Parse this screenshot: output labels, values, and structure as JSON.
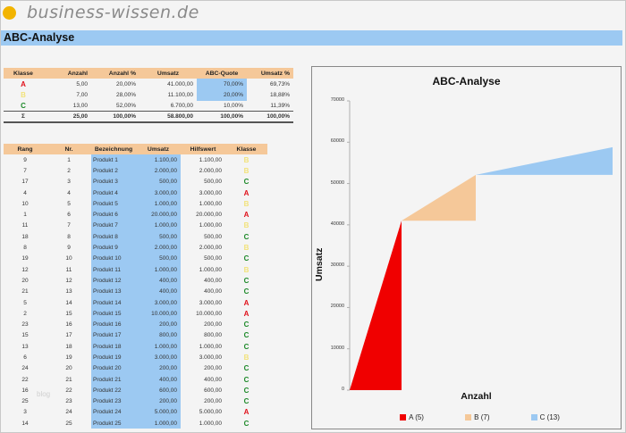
{
  "brand": {
    "logo_text": "business-wissen.de",
    "logo_color": "#f2b400"
  },
  "page_title": "ABC-Analyse",
  "summary_table": {
    "headers": [
      "Klasse",
      "Anzahl",
      "Anzahl %",
      "Umsatz",
      "ABC-Quote",
      "Umsatz %"
    ],
    "rows": [
      {
        "klasse": "A",
        "anzahl": "5,00",
        "anzahl_pct": "20,00%",
        "umsatz": "41.000,00",
        "quote": "70,00%",
        "umsatz_pct": "69,73%"
      },
      {
        "klasse": "B",
        "anzahl": "7,00",
        "anzahl_pct": "28,00%",
        "umsatz": "11.100,00",
        "quote": "20,00%",
        "umsatz_pct": "18,88%"
      },
      {
        "klasse": "C",
        "anzahl": "13,00",
        "anzahl_pct": "52,00%",
        "umsatz": "6.700,00",
        "quote": "10,00%",
        "umsatz_pct": "11,39%"
      }
    ],
    "total": {
      "symbol": "Σ",
      "anzahl": "25,00",
      "anzahl_pct": "100,00%",
      "umsatz": "58.800,00",
      "quote": "100,00%",
      "umsatz_pct": "100,00%"
    }
  },
  "detail_table": {
    "headers": [
      "Rang",
      "Nr.",
      "Bezeichnung",
      "Umsatz",
      "Hilfswert",
      "Klasse"
    ],
    "rows": [
      {
        "rang": "9",
        "nr": "1",
        "name": "Produkt 1",
        "umsatz": "1.100,00",
        "hilf": "1.100,00",
        "klasse": "B"
      },
      {
        "rang": "7",
        "nr": "2",
        "name": "Produkt 2",
        "umsatz": "2.000,00",
        "hilf": "2.000,00",
        "klasse": "B"
      },
      {
        "rang": "17",
        "nr": "3",
        "name": "Produkt 3",
        "umsatz": "500,00",
        "hilf": "500,00",
        "klasse": "C"
      },
      {
        "rang": "4",
        "nr": "4",
        "name": "Produkt 4",
        "umsatz": "3.000,00",
        "hilf": "3.000,00",
        "klasse": "A"
      },
      {
        "rang": "10",
        "nr": "5",
        "name": "Produkt 5",
        "umsatz": "1.000,00",
        "hilf": "1.000,00",
        "klasse": "B"
      },
      {
        "rang": "1",
        "nr": "6",
        "name": "Produkt 6",
        "umsatz": "20.000,00",
        "hilf": "20.000,00",
        "klasse": "A"
      },
      {
        "rang": "11",
        "nr": "7",
        "name": "Produkt 7",
        "umsatz": "1.000,00",
        "hilf": "1.000,00",
        "klasse": "B"
      },
      {
        "rang": "18",
        "nr": "8",
        "name": "Produkt 8",
        "umsatz": "500,00",
        "hilf": "500,00",
        "klasse": "C"
      },
      {
        "rang": "8",
        "nr": "9",
        "name": "Produkt 9",
        "umsatz": "2.000,00",
        "hilf": "2.000,00",
        "klasse": "B"
      },
      {
        "rang": "19",
        "nr": "10",
        "name": "Produkt 10",
        "umsatz": "500,00",
        "hilf": "500,00",
        "klasse": "C"
      },
      {
        "rang": "12",
        "nr": "11",
        "name": "Produkt 11",
        "umsatz": "1.000,00",
        "hilf": "1.000,00",
        "klasse": "B"
      },
      {
        "rang": "20",
        "nr": "12",
        "name": "Produkt 12",
        "umsatz": "400,00",
        "hilf": "400,00",
        "klasse": "C"
      },
      {
        "rang": "21",
        "nr": "13",
        "name": "Produkt 13",
        "umsatz": "400,00",
        "hilf": "400,00",
        "klasse": "C"
      },
      {
        "rang": "5",
        "nr": "14",
        "name": "Produkt 14",
        "umsatz": "3.000,00",
        "hilf": "3.000,00",
        "klasse": "A"
      },
      {
        "rang": "2",
        "nr": "15",
        "name": "Produkt 15",
        "umsatz": "10.000,00",
        "hilf": "10.000,00",
        "klasse": "A"
      },
      {
        "rang": "23",
        "nr": "16",
        "name": "Produkt 16",
        "umsatz": "200,00",
        "hilf": "200,00",
        "klasse": "C"
      },
      {
        "rang": "15",
        "nr": "17",
        "name": "Produkt 17",
        "umsatz": "800,00",
        "hilf": "800,00",
        "klasse": "C"
      },
      {
        "rang": "13",
        "nr": "18",
        "name": "Produkt 18",
        "umsatz": "1.000,00",
        "hilf": "1.000,00",
        "klasse": "C"
      },
      {
        "rang": "6",
        "nr": "19",
        "name": "Produkt 19",
        "umsatz": "3.000,00",
        "hilf": "3.000,00",
        "klasse": "B"
      },
      {
        "rang": "24",
        "nr": "20",
        "name": "Produkt 20",
        "umsatz": "200,00",
        "hilf": "200,00",
        "klasse": "C"
      },
      {
        "rang": "22",
        "nr": "21",
        "name": "Produkt 21",
        "umsatz": "400,00",
        "hilf": "400,00",
        "klasse": "C"
      },
      {
        "rang": "16",
        "nr": "22",
        "name": "Produkt 22",
        "umsatz": "600,00",
        "hilf": "600,00",
        "klasse": "C"
      },
      {
        "rang": "25",
        "nr": "23",
        "name": "Produkt 23",
        "umsatz": "200,00",
        "hilf": "200,00",
        "klasse": "C"
      },
      {
        "rang": "3",
        "nr": "24",
        "name": "Produkt 24",
        "umsatz": "5.000,00",
        "hilf": "5.000,00",
        "klasse": "A"
      },
      {
        "rang": "14",
        "nr": "25",
        "name": "Produkt 25",
        "umsatz": "1.000,00",
        "hilf": "1.000,00",
        "klasse": "C"
      }
    ]
  },
  "watermark": "blog",
  "colors": {
    "A": "#f00000",
    "B": "#f5c899",
    "C": "#9cc9f2",
    "header_bg": "#f5c899",
    "highlight_bg": "#9cc9f2"
  },
  "chart_data": {
    "type": "area",
    "title": "ABC-Analyse",
    "xlabel": "Anzahl",
    "ylabel": "Umsatz",
    "ylim": [
      0,
      70000
    ],
    "yticks": [
      "70000",
      "60000",
      "50000",
      "40000",
      "30000",
      "20000",
      "10000",
      "0"
    ],
    "series": [
      {
        "name": "A (5)",
        "x_range": [
          0,
          5
        ],
        "y_start": 0,
        "y_end": 41000,
        "color": "#f00000"
      },
      {
        "name": "B (7)",
        "x_range": [
          5,
          12
        ],
        "y_start": 41000,
        "y_end": 52100,
        "color": "#f5c899"
      },
      {
        "name": "C (13)",
        "x_range": [
          12,
          25
        ],
        "y_start": 52100,
        "y_end": 58800,
        "color": "#9cc9f2"
      }
    ],
    "legend": [
      "A (5)",
      "B (7)",
      "C (13)"
    ],
    "legend_position": "bottom",
    "grid": false
  }
}
